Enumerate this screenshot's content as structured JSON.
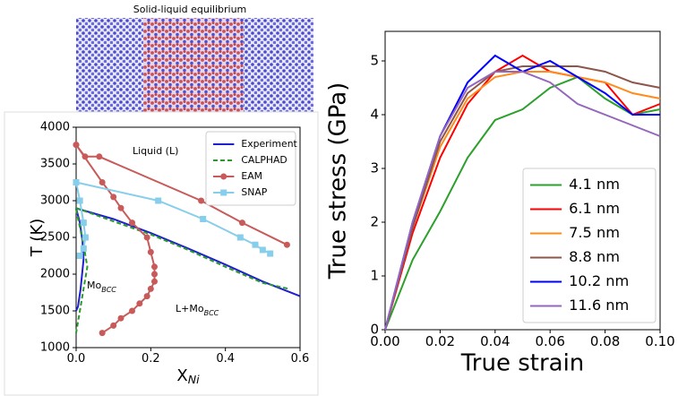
{
  "image_title": "Solid-liquid equilibrium",
  "chart_data": [
    {
      "type": "line",
      "xlabel": {
        "text": "X",
        "sub": "Ni"
      },
      "ylabel": "T (K)",
      "xlim": [
        0,
        0.6
      ],
      "ylim": [
        1000,
        4000
      ],
      "xticks": [
        {
          "value": 0,
          "label": "0.0"
        },
        {
          "value": 0.2,
          "label": "0.2"
        },
        {
          "value": 0.4,
          "label": "0.4"
        },
        {
          "value": 0.6,
          "label": "0.6"
        }
      ],
      "yticks": [
        1000,
        1500,
        2000,
        2500,
        3000,
        3500,
        4000
      ],
      "legend": "upper right",
      "annotations": [
        "Liquid (L)",
        {
          "text": "Mo",
          "sub": "BCC"
        },
        {
          "text": "L+Mo",
          "sub": "BCC"
        }
      ],
      "series": [
        {
          "name": "Experiment",
          "color": "#1f1fd0",
          "x": [
            0,
            0.1,
            0.2,
            0.3,
            0.4,
            0.5,
            0.6,
            null,
            0,
            0.01,
            0.017,
            0.02,
            0.012,
            0.005,
            0
          ],
          "values": [
            2896,
            2750,
            2560,
            2350,
            2130,
            1900,
            1700,
            null,
            2896,
            2700,
            2450,
            2200,
            1800,
            1560,
            1500
          ]
        },
        {
          "name": "CALPHAD",
          "color": "#2a9a2a",
          "dash": true,
          "x": [
            0,
            0.1,
            0.2,
            0.3,
            0.4,
            0.5,
            0.57,
            null,
            0,
            0.02,
            0.03,
            0.02,
            0.01,
            0
          ],
          "values": [
            2900,
            2720,
            2540,
            2330,
            2100,
            1880,
            1800,
            null,
            2880,
            2400,
            2100,
            1800,
            1500,
            1200
          ]
        },
        {
          "name": "EAM",
          "color": "#c85a5a",
          "marker": "o",
          "x": [
            0,
            0.024,
            0.062,
            0.335,
            0.445,
            0.565,
            null,
            0,
            0.07,
            0.1,
            0.12,
            0.15,
            0.19,
            0.2,
            0.21,
            0.21,
            0.21,
            0.2,
            0.19,
            0.17,
            0.15,
            0.12,
            0.1,
            0.07
          ],
          "values": [
            3760,
            3600,
            3600,
            3000,
            2700,
            2400,
            null,
            3760,
            3250,
            3050,
            2900,
            2700,
            2500,
            2300,
            2100,
            2000,
            1900,
            1800,
            1700,
            1600,
            1500,
            1400,
            1300,
            1200
          ]
        },
        {
          "name": "SNAP",
          "color": "#87ceeb",
          "marker": "s",
          "x": [
            0,
            0.22,
            0.34,
            0.44,
            0.48,
            0.5,
            0.52,
            null,
            0,
            0.01,
            0.02,
            0.025,
            0.02,
            0.01
          ],
          "values": [
            3250,
            3000,
            2750,
            2500,
            2400,
            2330,
            2280,
            null,
            3250,
            3000,
            2700,
            2500,
            2350,
            2250
          ]
        }
      ]
    },
    {
      "type": "line",
      "xlabel": "True strain",
      "ylabel": "True stress (GPa)",
      "xlim": [
        0,
        0.1
      ],
      "ylim": [
        0,
        5.55
      ],
      "xticks": [
        {
          "value": 0,
          "label": "0.00"
        },
        {
          "value": 0.02,
          "label": "0.02"
        },
        {
          "value": 0.04,
          "label": "0.04"
        },
        {
          "value": 0.06,
          "label": "0.06"
        },
        {
          "value": 0.08,
          "label": "0.08"
        },
        {
          "value": 0.1,
          "label": "0.10"
        }
      ],
      "yticks": [
        0,
        1,
        2,
        3,
        4,
        5
      ],
      "legend": "lower right",
      "x": [
        0,
        0.01,
        0.02,
        0.03,
        0.04,
        0.05,
        0.06,
        0.07,
        0.08,
        0.09,
        0.1
      ],
      "series": [
        {
          "name": "4.1 nm",
          "color": "#2ca02c",
          "values": [
            0,
            1.3,
            2.2,
            3.2,
            3.9,
            4.1,
            4.5,
            4.7,
            4.3,
            4.0,
            4.1
          ]
        },
        {
          "name": "6.1 nm",
          "color": "#ff0000",
          "values": [
            0,
            1.8,
            3.2,
            4.2,
            4.8,
            5.1,
            4.8,
            4.7,
            4.6,
            4.0,
            4.2
          ]
        },
        {
          "name": "7.5 nm",
          "color": "#ff8c1a",
          "values": [
            0,
            1.9,
            3.4,
            4.3,
            4.7,
            4.8,
            4.8,
            4.7,
            4.6,
            4.4,
            4.3
          ]
        },
        {
          "name": "8.8 nm",
          "color": "#8c564b",
          "values": [
            0,
            1.9,
            3.5,
            4.4,
            4.8,
            4.9,
            4.9,
            4.9,
            4.8,
            4.6,
            4.5
          ]
        },
        {
          "name": "10.2 nm",
          "color": "#0000ff",
          "values": [
            0,
            2.0,
            3.6,
            4.6,
            5.1,
            4.8,
            5.0,
            4.7,
            4.4,
            4.0,
            4.0
          ]
        },
        {
          "name": "11.6 nm",
          "color": "#9467bd",
          "values": [
            0,
            2.0,
            3.6,
            4.5,
            4.8,
            4.8,
            4.6,
            4.2,
            4.0,
            3.8,
            3.6
          ]
        }
      ]
    }
  ]
}
